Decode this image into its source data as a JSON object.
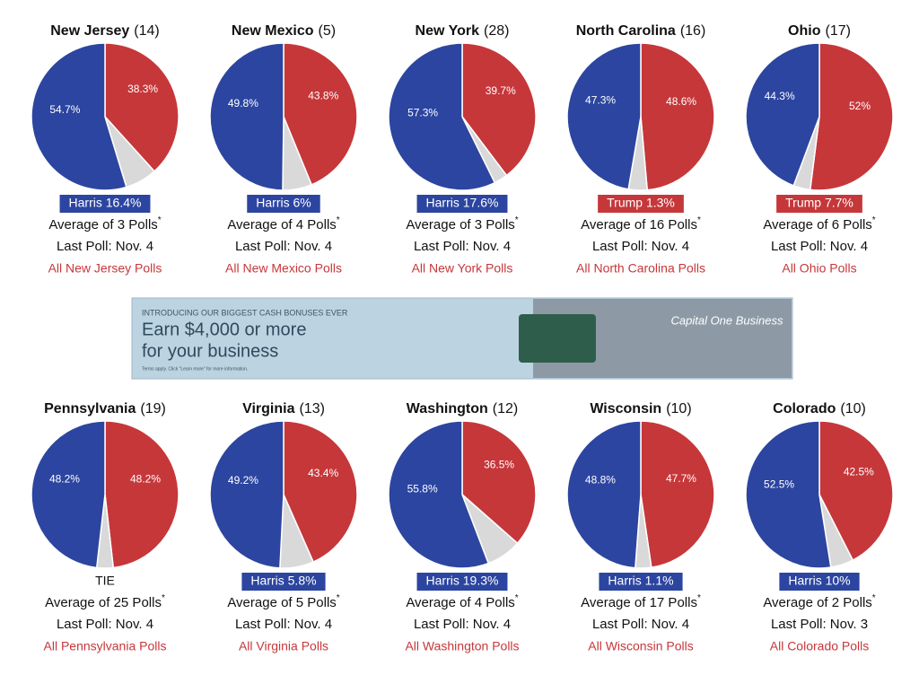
{
  "chart_data": [
    {
      "type": "pie",
      "title": "New Jersey",
      "subtitle": "(14)",
      "values": [
        38.3,
        7.0,
        54.7
      ],
      "value_labels": [
        "38.3%",
        null,
        "54.7%"
      ],
      "colors": [
        "#c6373a",
        "#d9d9d9",
        "#2c45a0"
      ],
      "leader": "Harris 16.4%",
      "leader_color": "#2c45a0",
      "polls": "Average of 3 Polls",
      "polls_note": "*",
      "last_poll": "Last Poll: Nov. 4",
      "link": "All New Jersey Polls"
    },
    {
      "type": "pie",
      "title": "New Mexico",
      "subtitle": "(5)",
      "values": [
        43.8,
        6.4,
        49.8
      ],
      "value_labels": [
        "43.8%",
        null,
        "49.8%"
      ],
      "colors": [
        "#c6373a",
        "#d9d9d9",
        "#2c45a0"
      ],
      "leader": "Harris 6%",
      "leader_color": "#2c45a0",
      "polls": "Average of 4 Polls",
      "polls_note": "*",
      "last_poll": "Last Poll: Nov. 4",
      "link": "All New Mexico Polls"
    },
    {
      "type": "pie",
      "title": "New York",
      "subtitle": "(28)",
      "values": [
        39.7,
        3.0,
        57.3
      ],
      "value_labels": [
        "39.7%",
        null,
        "57.3%"
      ],
      "colors": [
        "#c6373a",
        "#d9d9d9",
        "#2c45a0"
      ],
      "leader": "Harris 17.6%",
      "leader_color": "#2c45a0",
      "polls": "Average of 3 Polls",
      "polls_note": "*",
      "last_poll": "Last Poll: Nov. 4",
      "link": "All New York Polls"
    },
    {
      "type": "pie",
      "title": "North Carolina",
      "subtitle": "(16)",
      "values": [
        48.6,
        4.1,
        47.3
      ],
      "value_labels": [
        "48.6%",
        null,
        "47.3%"
      ],
      "colors": [
        "#c6373a",
        "#d9d9d9",
        "#2c45a0"
      ],
      "leader": "Trump 1.3%",
      "leader_color": "#c6373a",
      "polls": "Average of 16 Polls",
      "polls_note": "*",
      "last_poll": "Last Poll: Nov. 4",
      "link": "All North Carolina Polls"
    },
    {
      "type": "pie",
      "title": "Ohio",
      "subtitle": "(17)",
      "values": [
        52,
        3.7,
        44.3
      ],
      "value_labels": [
        "52%",
        null,
        "44.3%"
      ],
      "colors": [
        "#c6373a",
        "#d9d9d9",
        "#2c45a0"
      ],
      "leader": "Trump 7.7%",
      "leader_color": "#c6373a",
      "polls": "Average of 6 Polls",
      "polls_note": "*",
      "last_poll": "Last Poll: Nov. 4",
      "link": "All Ohio Polls"
    },
    {
      "type": "pie",
      "title": "Pennsylvania",
      "subtitle": "(19)",
      "values": [
        48.2,
        3.6,
        48.2
      ],
      "value_labels": [
        "48.2%",
        null,
        "48.2%"
      ],
      "colors": [
        "#c6373a",
        "#d9d9d9",
        "#2c45a0"
      ],
      "leader": "TIE",
      "polls": "Average of 25 Polls",
      "polls_note": "*",
      "last_poll": "Last Poll: Nov. 4",
      "link": "All Pennsylvania Polls"
    },
    {
      "type": "pie",
      "title": "Virginia",
      "subtitle": "(13)",
      "values": [
        43.4,
        7.4,
        49.2
      ],
      "value_labels": [
        "43.4%",
        null,
        "49.2%"
      ],
      "colors": [
        "#c6373a",
        "#d9d9d9",
        "#2c45a0"
      ],
      "leader": "Harris 5.8%",
      "leader_color": "#2c45a0",
      "polls": "Average of 5 Polls",
      "polls_note": "*",
      "last_poll": "Last Poll: Nov. 4",
      "link": "All Virginia Polls"
    },
    {
      "type": "pie",
      "title": "Washington",
      "subtitle": "(12)",
      "values": [
        36.5,
        7.7,
        55.8
      ],
      "value_labels": [
        "36.5%",
        null,
        "55.8%"
      ],
      "colors": [
        "#c6373a",
        "#d9d9d9",
        "#2c45a0"
      ],
      "leader": "Harris 19.3%",
      "leader_color": "#2c45a0",
      "polls": "Average of 4 Polls",
      "polls_note": "*",
      "last_poll": "Last Poll: Nov. 4",
      "link": "All Washington Polls"
    },
    {
      "type": "pie",
      "title": "Wisconsin",
      "subtitle": "(10)",
      "values": [
        47.7,
        3.5,
        48.8
      ],
      "value_labels": [
        "47.7%",
        null,
        "48.8%"
      ],
      "colors": [
        "#c6373a",
        "#d9d9d9",
        "#2c45a0"
      ],
      "leader": "Harris 1.1%",
      "leader_color": "#2c45a0",
      "polls": "Average of 17 Polls",
      "polls_note": "*",
      "last_poll": "Last Poll: Nov. 4",
      "link": "All Wisconsin Polls"
    },
    {
      "type": "pie",
      "title": "Colorado",
      "subtitle": "(10)",
      "values": [
        42.5,
        5.0,
        52.5
      ],
      "value_labels": [
        "42.5%",
        null,
        "52.5%"
      ],
      "colors": [
        "#c6373a",
        "#d9d9d9",
        "#2c45a0"
      ],
      "leader": "Harris 10%",
      "leader_color": "#2c45a0",
      "polls": "Average of 2 Polls",
      "polls_note": "*",
      "last_poll": "Last Poll: Nov. 3",
      "link": "All Colorado Polls"
    }
  ],
  "ad": {
    "kicker": "INTRODUCING OUR BIGGEST CASH BONUSES EVER",
    "line1": "Earn $4,000 or more",
    "line2": "for your business",
    "terms": "Terms apply. Click \"Learn more\" for more information.",
    "brand": "Capital One Business"
  }
}
